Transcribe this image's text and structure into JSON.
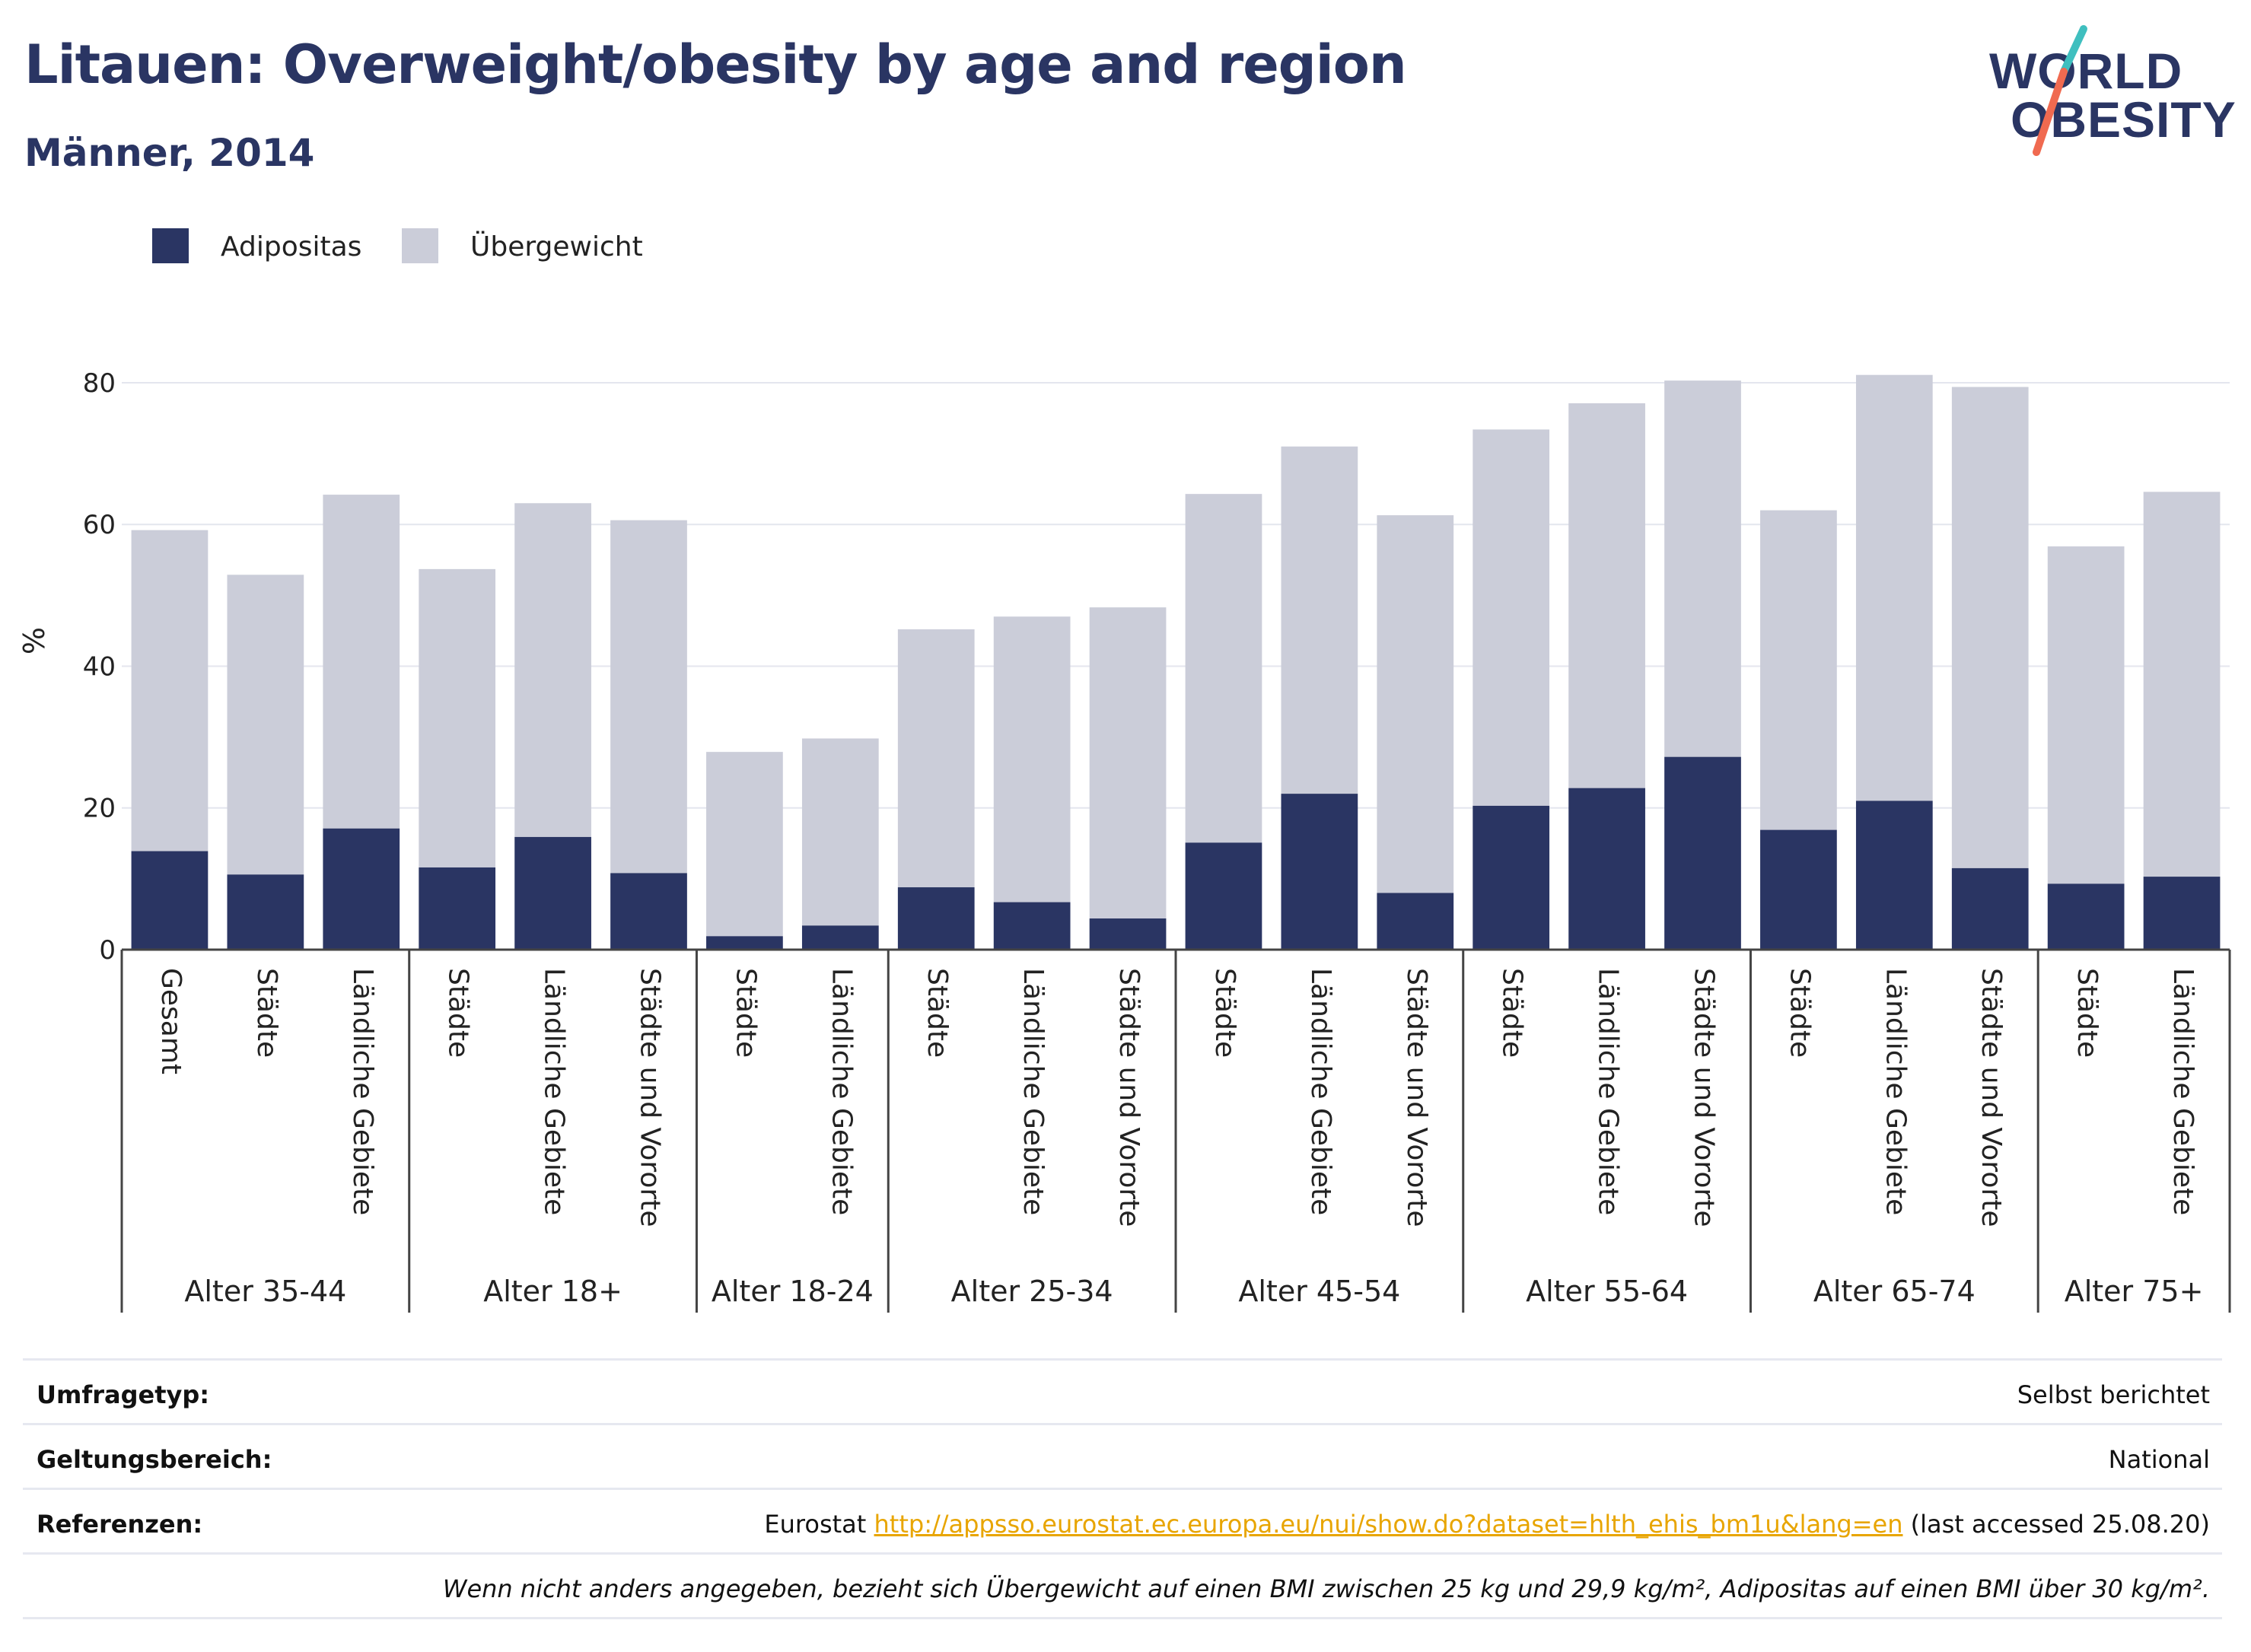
{
  "header": {
    "title": "Litauen: Overweight/obesity by age and region",
    "subtitle": "Männer, 2014"
  },
  "logo": {
    "line1": "WORLD",
    "line2": "OBESITY"
  },
  "colors": {
    "obesity": "#2a3563",
    "overweight": "#cbcdd9",
    "title": "#2a3563",
    "logo_teal": "#3fbfbf",
    "logo_coral": "#f06a50",
    "link": "#e8a500"
  },
  "chart_data": {
    "type": "bar",
    "stacked": true,
    "ylabel": "%",
    "ylim": [
      0,
      83
    ],
    "yticks": [
      0,
      20,
      40,
      60,
      80
    ],
    "grid": true,
    "legend_position": "top-left",
    "legend": [
      "Adipositas",
      "Übergewicht"
    ],
    "groups": [
      {
        "label": "Alter 35-44",
        "categories": [
          "Gesamt",
          "Städte",
          "Ländliche Gebiete"
        ]
      },
      {
        "label": "Alter 18+",
        "categories": [
          "Städte",
          "Ländliche Gebiete",
          "Städte und Vororte"
        ]
      },
      {
        "label": "Alter 18-24",
        "categories": [
          "Städte",
          "Ländliche Gebiete"
        ]
      },
      {
        "label": "Alter 25-34",
        "categories": [
          "Städte",
          "Ländliche Gebiete",
          "Städte und Vororte"
        ]
      },
      {
        "label": "Alter 45-54",
        "categories": [
          "Städte",
          "Ländliche Gebiete",
          "Städte und Vororte"
        ]
      },
      {
        "label": "Alter 55-64",
        "categories": [
          "Städte",
          "Ländliche Gebiete",
          "Städte und Vororte"
        ]
      },
      {
        "label": "Alter 65-74",
        "categories": [
          "Städte",
          "Ländliche Gebiete",
          "Städte und Vororte"
        ]
      },
      {
        "label": "Alter 75+",
        "categories": [
          "Städte",
          "Ländliche Gebiete"
        ]
      }
    ],
    "series": [
      {
        "name": "Adipositas",
        "values": [
          13.9,
          10.6,
          17.1,
          11.6,
          15.9,
          10.8,
          1.9,
          3.4,
          8.8,
          6.7,
          4.4,
          15.1,
          22.0,
          8.0,
          20.3,
          22.8,
          27.2,
          16.9,
          21.0,
          11.5,
          9.3,
          10.3
        ]
      },
      {
        "name": "Übergewicht",
        "values": [
          45.3,
          42.3,
          47.1,
          42.1,
          47.1,
          49.8,
          26.0,
          26.4,
          36.4,
          40.3,
          43.9,
          49.2,
          49.0,
          53.3,
          53.1,
          54.3,
          53.1,
          45.1,
          60.1,
          67.9,
          47.6,
          54.3
        ]
      }
    ]
  },
  "footer": {
    "rows": [
      {
        "label": "Umfragetyp:",
        "value": "Selbst berichtet"
      },
      {
        "label": "Geltungsbereich:",
        "value": "National"
      },
      {
        "label": "Referenzen:",
        "value_prefix": "Eurostat ",
        "link": "http://appsso.eurostat.ec.europa.eu/nui/show.do?dataset=hlth_ehis_bm1u&lang=en",
        "value_suffix": " (last accessed 25.08.20)"
      }
    ],
    "note": "Wenn nicht anders angegeben, bezieht sich Übergewicht auf einen BMI zwischen 25 kg und 29,9 kg/m², Adipositas auf einen BMI über 30 kg/m²."
  }
}
